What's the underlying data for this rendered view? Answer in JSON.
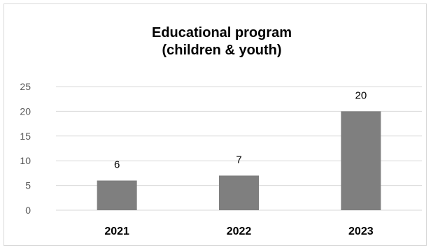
{
  "chart_data": {
    "type": "bar",
    "title": [
      "Educational program",
      "(children & youth)"
    ],
    "categories": [
      "2021",
      "2022",
      "2023"
    ],
    "values": [
      6,
      7,
      20
    ],
    "ylim": [
      0,
      25
    ],
    "yticks": [
      0,
      5,
      10,
      15,
      20,
      25
    ],
    "xlabel": "",
    "ylabel": "",
    "grid": true,
    "legend": "none",
    "bar_color": "#7f7f7f",
    "grid_color": "#d9d9d9"
  }
}
